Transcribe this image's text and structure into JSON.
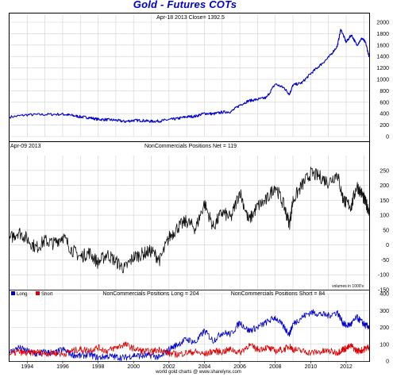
{
  "title": "Gold - Futures COTs",
  "footer": "world gold charts @ www.sharelynx.com",
  "chart_data": [
    {
      "type": "line",
      "panel": "price",
      "header": "Apr-18  2013   Close= 1392.5",
      "ylim": [
        0,
        2000
      ],
      "yticks": [
        0,
        200,
        400,
        600,
        800,
        1000,
        1200,
        1400,
        1600,
        1800,
        2000
      ],
      "grid": true,
      "series": [
        {
          "color": "#0000cc",
          "points": [
            [
              1993.0,
              340
            ],
            [
              1994.0,
              380
            ],
            [
              1995.0,
              385
            ],
            [
              1996.0,
              390
            ],
            [
              1996.5,
              370
            ],
            [
              1997.0,
              345
            ],
            [
              1997.5,
              330
            ],
            [
              1998.0,
              300
            ],
            [
              1998.5,
              295
            ],
            [
              1999.0,
              285
            ],
            [
              1999.5,
              262
            ],
            [
              2000.0,
              282
            ],
            [
              2000.5,
              280
            ],
            [
              2001.0,
              265
            ],
            [
              2001.5,
              272
            ],
            [
              2002.0,
              295
            ],
            [
              2002.5,
              315
            ],
            [
              2003.0,
              345
            ],
            [
              2003.5,
              355
            ],
            [
              2004.0,
              405
            ],
            [
              2004.5,
              395
            ],
            [
              2005.0,
              425
            ],
            [
              2005.5,
              435
            ],
            [
              2006.0,
              550
            ],
            [
              2006.5,
              625
            ],
            [
              2007.0,
              650
            ],
            [
              2007.5,
              680
            ],
            [
              2008.0,
              920
            ],
            [
              2008.5,
              850
            ],
            [
              2008.8,
              740
            ],
            [
              2009.0,
              900
            ],
            [
              2009.5,
              940
            ],
            [
              2010.0,
              1100
            ],
            [
              2010.5,
              1240
            ],
            [
              2011.0,
              1380
            ],
            [
              2011.5,
              1580
            ],
            [
              2011.7,
              1880
            ],
            [
              2012.0,
              1650
            ],
            [
              2012.3,
              1780
            ],
            [
              2012.6,
              1600
            ],
            [
              2012.9,
              1720
            ],
            [
              2013.1,
              1640
            ],
            [
              2013.3,
              1392.5
            ]
          ]
        }
      ]
    },
    {
      "type": "line",
      "panel": "net",
      "header_left": "Apr-09  2013",
      "header_center": "NonCommercials Positions Net = 119",
      "note": "volumes in 1000's",
      "ylim": [
        -150,
        300
      ],
      "yticks": [
        -150,
        -100,
        -50,
        0,
        50,
        100,
        150,
        200,
        250
      ],
      "grid": true,
      "series": [
        {
          "color": "#111111",
          "points": [
            [
              1993.0,
              20
            ],
            [
              1993.5,
              45
            ],
            [
              1994.0,
              20
            ],
            [
              1994.5,
              -10
            ],
            [
              1995.0,
              15
            ],
            [
              1995.5,
              5
            ],
            [
              1996.0,
              30
            ],
            [
              1996.5,
              -15
            ],
            [
              1997.0,
              -40
            ],
            [
              1997.5,
              -25
            ],
            [
              1998.0,
              -60
            ],
            [
              1998.5,
              -30
            ],
            [
              1999.0,
              -55
            ],
            [
              1999.5,
              -80
            ],
            [
              2000.0,
              -40
            ],
            [
              2000.5,
              -30
            ],
            [
              2001.0,
              -20
            ],
            [
              2001.5,
              -50
            ],
            [
              2002.0,
              25
            ],
            [
              2002.5,
              60
            ],
            [
              2003.0,
              80
            ],
            [
              2003.5,
              55
            ],
            [
              2004.0,
              140
            ],
            [
              2004.5,
              60
            ],
            [
              2005.0,
              110
            ],
            [
              2005.5,
              90
            ],
            [
              2006.0,
              180
            ],
            [
              2006.5,
              80
            ],
            [
              2007.0,
              130
            ],
            [
              2007.5,
              150
            ],
            [
              2008.0,
              200
            ],
            [
              2008.5,
              130
            ],
            [
              2008.8,
              70
            ],
            [
              2009.0,
              150
            ],
            [
              2009.5,
              200
            ],
            [
              2010.0,
              240
            ],
            [
              2010.5,
              230
            ],
            [
              2011.0,
              210
            ],
            [
              2011.5,
              240
            ],
            [
              2011.8,
              160
            ],
            [
              2012.0,
              140
            ],
            [
              2012.3,
              130
            ],
            [
              2012.6,
              200
            ],
            [
              2012.9,
              170
            ],
            [
              2013.1,
              140
            ],
            [
              2013.3,
              119
            ]
          ]
        }
      ]
    },
    {
      "type": "line",
      "panel": "long-short",
      "legend": [
        "Long",
        "Short"
      ],
      "header_center_left": "NonCommercials Positions Long = 204",
      "header_center_right": "NonCommercials Positions Short = 84",
      "ylim": [
        0,
        400
      ],
      "yticks": [
        0,
        100,
        200,
        300,
        400
      ],
      "grid": true,
      "xticks": [
        "1994",
        "1996",
        "1998",
        "2000",
        "2002",
        "2004",
        "2006",
        "2008",
        "2010",
        "2012"
      ],
      "series": [
        {
          "name": "Long",
          "color": "#0000cc",
          "points": [
            [
              1993.0,
              50
            ],
            [
              1993.5,
              80
            ],
            [
              1994.0,
              60
            ],
            [
              1994.5,
              40
            ],
            [
              1995.0,
              55
            ],
            [
              1995.5,
              45
            ],
            [
              1996.0,
              70
            ],
            [
              1996.5,
              40
            ],
            [
              1997.0,
              30
            ],
            [
              1997.5,
              40
            ],
            [
              1998.0,
              20
            ],
            [
              1998.5,
              30
            ],
            [
              1999.0,
              25
            ],
            [
              1999.5,
              20
            ],
            [
              2000.0,
              35
            ],
            [
              2000.5,
              30
            ],
            [
              2001.0,
              35
            ],
            [
              2001.5,
              20
            ],
            [
              2002.0,
              70
            ],
            [
              2002.5,
              100
            ],
            [
              2003.0,
              130
            ],
            [
              2003.5,
              110
            ],
            [
              2004.0,
              180
            ],
            [
              2004.5,
              120
            ],
            [
              2005.0,
              170
            ],
            [
              2005.5,
              160
            ],
            [
              2006.0,
              230
            ],
            [
              2006.5,
              180
            ],
            [
              2007.0,
              200
            ],
            [
              2007.5,
              230
            ],
            [
              2008.0,
              260
            ],
            [
              2008.5,
              200
            ],
            [
              2008.8,
              160
            ],
            [
              2009.0,
              220
            ],
            [
              2009.5,
              260
            ],
            [
              2010.0,
              290
            ],
            [
              2010.5,
              280
            ],
            [
              2011.0,
              270
            ],
            [
              2011.5,
              290
            ],
            [
              2011.8,
              230
            ],
            [
              2012.0,
              210
            ],
            [
              2012.3,
              220
            ],
            [
              2012.6,
              260
            ],
            [
              2012.9,
              230
            ],
            [
              2013.1,
              210
            ],
            [
              2013.3,
              204
            ]
          ]
        },
        {
          "name": "Short",
          "color": "#dd0000",
          "points": [
            [
              1993.0,
              40
            ],
            [
              1993.5,
              55
            ],
            [
              1994.0,
              45
            ],
            [
              1994.5,
              55
            ],
            [
              1995.0,
              45
            ],
            [
              1995.5,
              50
            ],
            [
              1996.0,
              40
            ],
            [
              1996.5,
              60
            ],
            [
              1997.0,
              70
            ],
            [
              1997.5,
              65
            ],
            [
              1998.0,
              80
            ],
            [
              1998.5,
              60
            ],
            [
              1999.0,
              80
            ],
            [
              1999.5,
              100
            ],
            [
              2000.0,
              75
            ],
            [
              2000.5,
              60
            ],
            [
              2001.0,
              55
            ],
            [
              2001.5,
              70
            ],
            [
              2002.0,
              45
            ],
            [
              2002.5,
              40
            ],
            [
              2003.0,
              50
            ],
            [
              2003.5,
              55
            ],
            [
              2004.0,
              40
            ],
            [
              2004.5,
              60
            ],
            [
              2005.0,
              55
            ],
            [
              2005.5,
              70
            ],
            [
              2006.0,
              50
            ],
            [
              2006.5,
              95
            ],
            [
              2007.0,
              70
            ],
            [
              2007.5,
              80
            ],
            [
              2008.0,
              60
            ],
            [
              2008.5,
              70
            ],
            [
              2008.8,
              90
            ],
            [
              2009.0,
              70
            ],
            [
              2009.5,
              60
            ],
            [
              2010.0,
              50
            ],
            [
              2010.5,
              55
            ],
            [
              2011.0,
              60
            ],
            [
              2011.5,
              50
            ],
            [
              2011.8,
              70
            ],
            [
              2012.0,
              75
            ],
            [
              2012.3,
              90
            ],
            [
              2012.6,
              60
            ],
            [
              2012.9,
              65
            ],
            [
              2013.1,
              75
            ],
            [
              2013.3,
              84
            ]
          ]
        }
      ]
    }
  ]
}
